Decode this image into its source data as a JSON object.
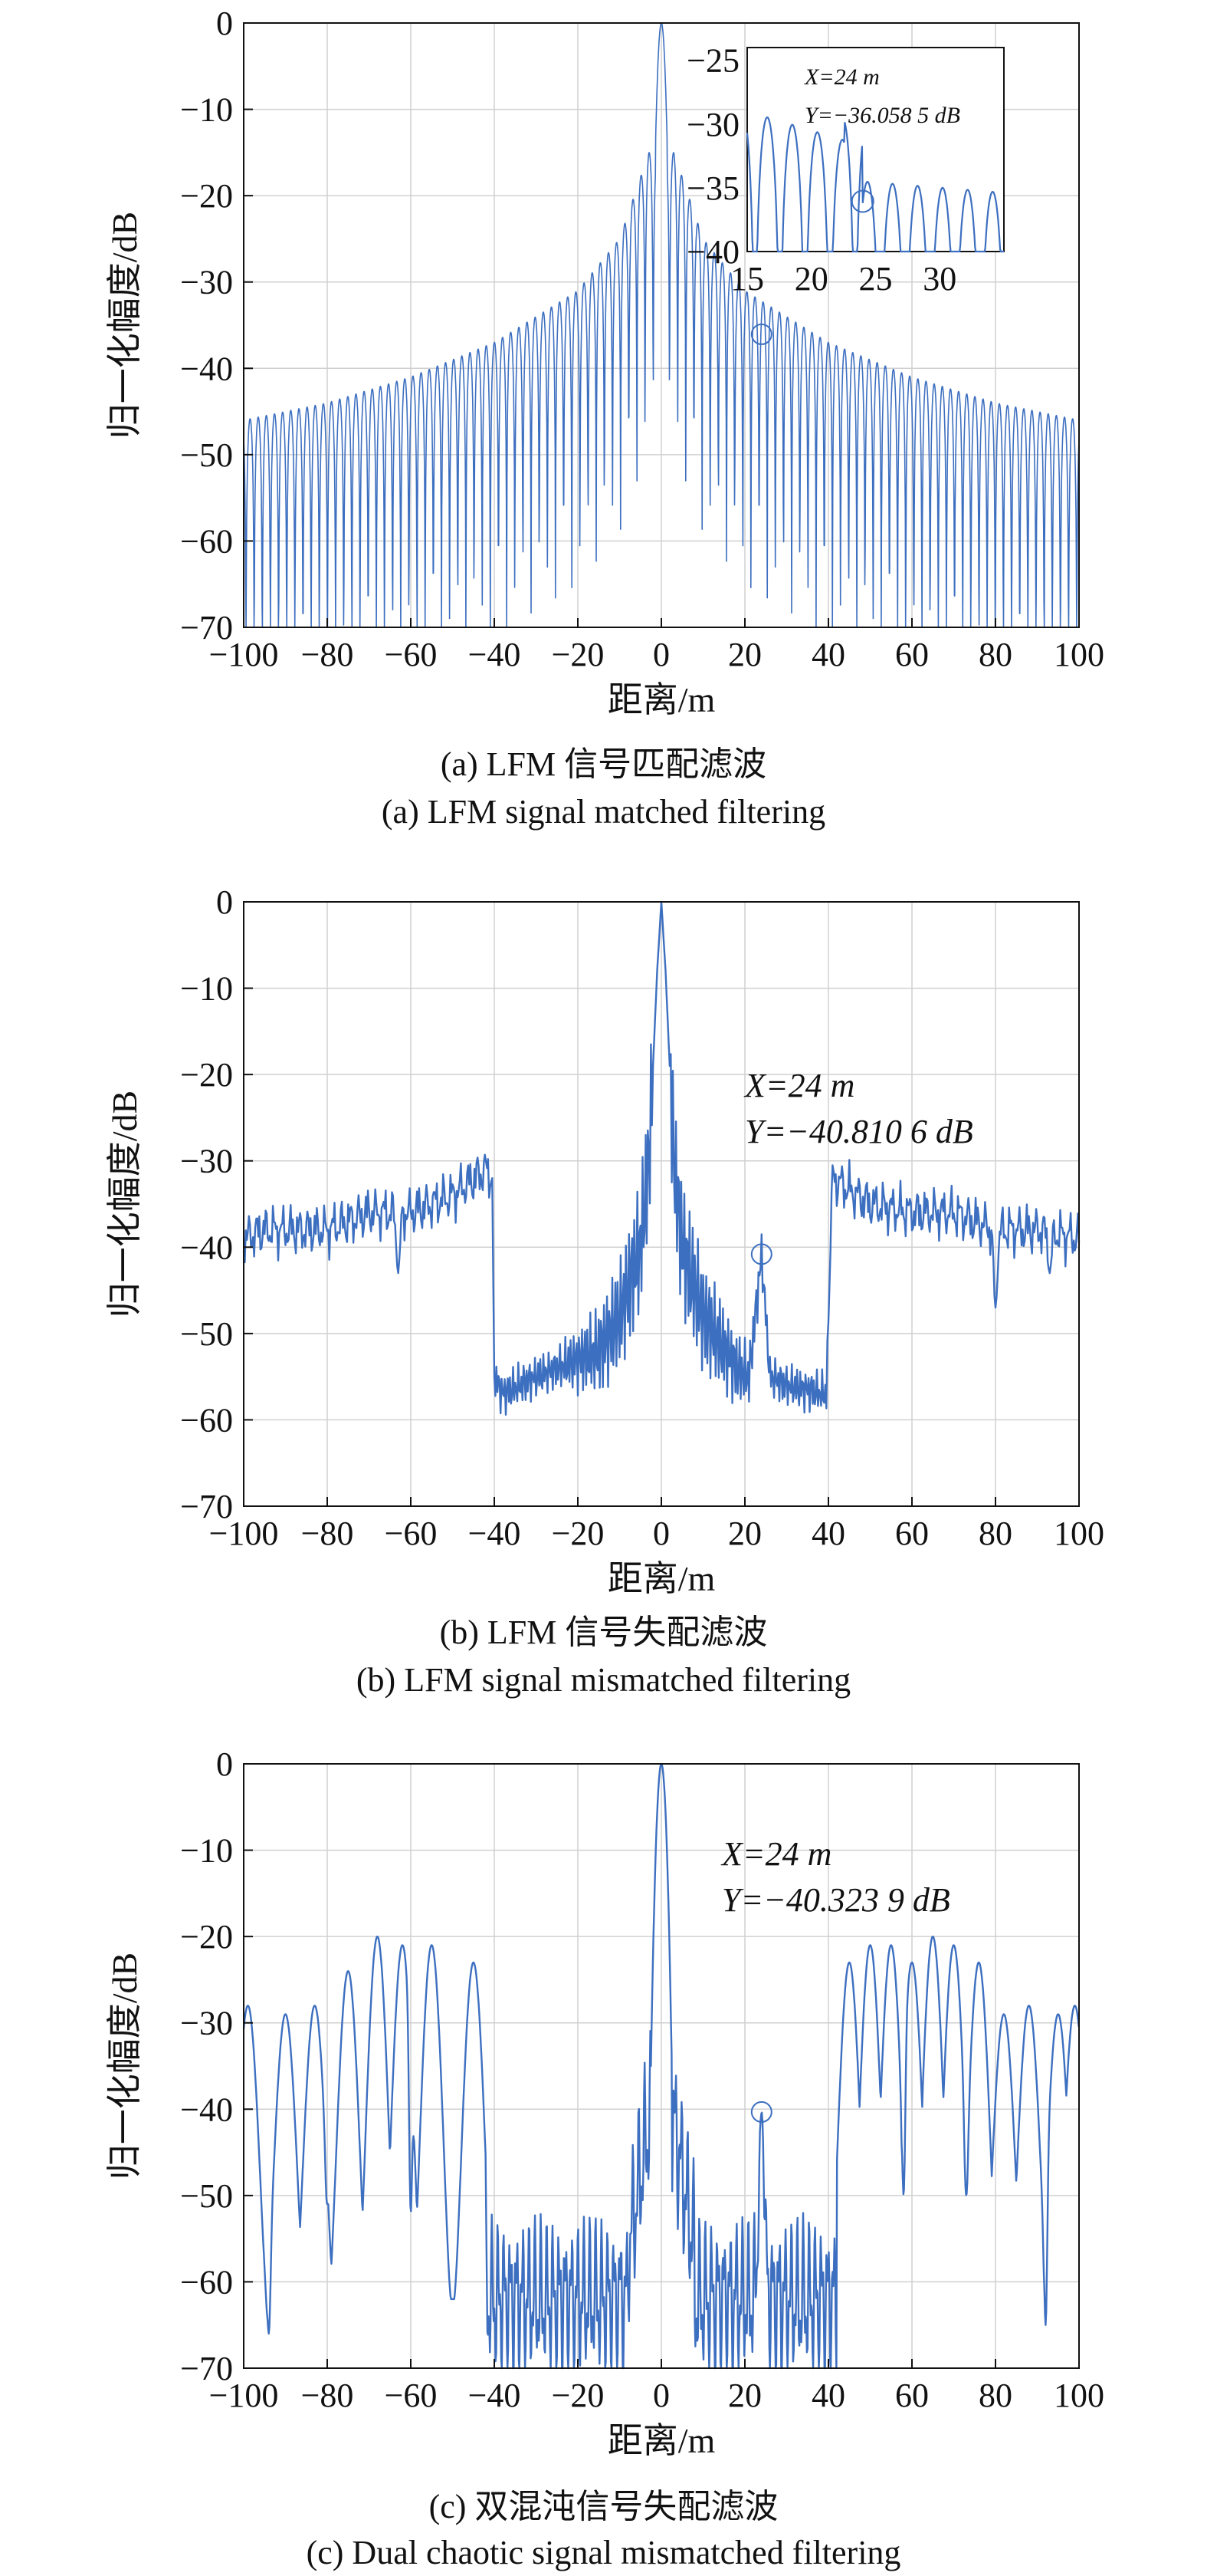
{
  "figure": {
    "panels": [
      {
        "caption_cn": "(a) LFM 信号匹配滤波",
        "caption_en": "(a) LFM signal matched filtering",
        "annotation": {
          "x_text": "X=24 m",
          "y_text": "Y=−36.058 5 dB"
        }
      },
      {
        "caption_cn": "(b) LFM 信号失配滤波",
        "caption_en": "(b) LFM signal mismatched filtering",
        "annotation": {
          "x_text": "X=24 m",
          "y_text": "Y=−40.810 6 dB"
        }
      },
      {
        "caption_cn": "(c) 双混沌信号失配滤波",
        "caption_en": "(c) Dual chaotic signal mismatched filtering",
        "annotation": {
          "x_text": "X=24 m",
          "y_text": "Y=−40.323 9 dB"
        }
      }
    ]
  },
  "chart_data": [
    {
      "type": "line",
      "xlabel": "距离/m",
      "ylabel": "归一化幅度/dB",
      "xlim": [
        -100,
        100
      ],
      "ylim": [
        -70,
        0
      ],
      "xticks": [
        "−100",
        "−80",
        "−60",
        "−40",
        "−20",
        "0",
        "20",
        "40",
        "60",
        "80",
        "100"
      ],
      "yticks": [
        "0",
        "−10",
        "−20",
        "−30",
        "−40",
        "−50",
        "−60",
        "−70"
      ],
      "grid": true,
      "line_color": "#3d6fc0",
      "peak": {
        "x": 0,
        "y": 0
      },
      "marker": {
        "x": 24,
        "y": -36.0585
      },
      "sidelobe_envelope": [
        {
          "x": -100,
          "y": -46
        },
        {
          "x": -80,
          "y": -44
        },
        {
          "x": -60,
          "y": -41
        },
        {
          "x": -40,
          "y": -37
        },
        {
          "x": -20,
          "y": -31
        },
        {
          "x": -10,
          "y": -25
        },
        {
          "x": -3,
          "y": -15
        },
        {
          "x": 3,
          "y": -15
        },
        {
          "x": 10,
          "y": -25
        },
        {
          "x": 20,
          "y": -31
        },
        {
          "x": 40,
          "y": -37
        },
        {
          "x": 60,
          "y": -41
        },
        {
          "x": 80,
          "y": -44
        },
        {
          "x": 100,
          "y": -46
        }
      ],
      "inset": {
        "xlim": [
          15,
          35
        ],
        "ylim": [
          -40,
          -24
        ],
        "xticks": [
          "15",
          "20",
          "25",
          "30"
        ],
        "yticks": [
          "−25",
          "−30",
          "−35",
          "−40"
        ],
        "marker": {
          "x": 24,
          "y": -36.0585
        }
      }
    },
    {
      "type": "line",
      "xlabel": "距离/m",
      "ylabel": "归一化幅度/dB",
      "xlim": [
        -100,
        100
      ],
      "ylim": [
        -70,
        0
      ],
      "xticks": [
        "−100",
        "−80",
        "−60",
        "−40",
        "−20",
        "0",
        "20",
        "40",
        "60",
        "80",
        "100"
      ],
      "yticks": [
        "0",
        "−10",
        "−20",
        "−30",
        "−40",
        "−50",
        "−60",
        "−70"
      ],
      "grid": true,
      "line_color": "#3d6fc0",
      "peak": {
        "x": 0,
        "y": 0
      },
      "marker": {
        "x": 24,
        "y": -40.8106
      },
      "profile": [
        {
          "x": -100,
          "y": -39
        },
        {
          "x": -95,
          "y": -38
        },
        {
          "x": -88,
          "y": -38
        },
        {
          "x": -80,
          "y": -38
        },
        {
          "x": -70,
          "y": -36
        },
        {
          "x": -60,
          "y": -36
        },
        {
          "x": -50,
          "y": -34
        },
        {
          "x": -42,
          "y": -31
        },
        {
          "x": -40.5,
          "y": -32
        },
        {
          "x": -40,
          "y": -55
        },
        {
          "x": -38,
          "y": -57
        },
        {
          "x": -30,
          "y": -55
        },
        {
          "x": -20,
          "y": -53
        },
        {
          "x": -15,
          "y": -52
        },
        {
          "x": -10,
          "y": -48
        },
        {
          "x": -5,
          "y": -40
        },
        {
          "x": -3,
          "y": -30
        },
        {
          "x": -1,
          "y": -8
        },
        {
          "x": 0,
          "y": 0
        },
        {
          "x": 1,
          "y": -8
        },
        {
          "x": 3,
          "y": -30
        },
        {
          "x": 5,
          "y": -40
        },
        {
          "x": 10,
          "y": -48
        },
        {
          "x": 18,
          "y": -54
        },
        {
          "x": 21,
          "y": -55
        },
        {
          "x": 24,
          "y": -40.8106
        },
        {
          "x": 26,
          "y": -55
        },
        {
          "x": 30,
          "y": -56
        },
        {
          "x": 39.5,
          "y": -57
        },
        {
          "x": 41,
          "y": -32
        },
        {
          "x": 50,
          "y": -35
        },
        {
          "x": 60,
          "y": -36
        },
        {
          "x": 70,
          "y": -36
        },
        {
          "x": 80,
          "y": -38
        },
        {
          "x": 90,
          "y": -38
        },
        {
          "x": 100,
          "y": -39
        }
      ],
      "dips": [
        {
          "x": -63,
          "y": -43
        },
        {
          "x": 80,
          "y": -47
        },
        {
          "x": 93,
          "y": -43
        }
      ]
    },
    {
      "type": "line",
      "xlabel": "距离/m",
      "ylabel": "归一化幅度/dB",
      "xlim": [
        -100,
        100
      ],
      "ylim": [
        -70,
        0
      ],
      "xticks": [
        "−100",
        "−80",
        "−60",
        "−40",
        "−20",
        "0",
        "20",
        "40",
        "60",
        "80",
        "100"
      ],
      "yticks": [
        "0",
        "−10",
        "−20",
        "−30",
        "−40",
        "−50",
        "−60",
        "−70"
      ],
      "grid": true,
      "line_color": "#3d6fc0",
      "peak": {
        "x": 0,
        "y": 0
      },
      "marker": {
        "x": 24,
        "y": -40.3239
      },
      "lobe_peaks": [
        {
          "x": -99,
          "y": -28
        },
        {
          "x": -90,
          "y": -29
        },
        {
          "x": -83,
          "y": -28
        },
        {
          "x": -75,
          "y": -24
        },
        {
          "x": -68,
          "y": -20
        },
        {
          "x": -62,
          "y": -21
        },
        {
          "x": -55,
          "y": -21
        },
        {
          "x": -45,
          "y": -23
        },
        {
          "x": 45,
          "y": -23
        },
        {
          "x": 50,
          "y": -21
        },
        {
          "x": 55,
          "y": -21
        },
        {
          "x": 60,
          "y": -23
        },
        {
          "x": 65,
          "y": -20
        },
        {
          "x": 70,
          "y": -21
        },
        {
          "x": 76,
          "y": -23
        },
        {
          "x": 82,
          "y": -29
        },
        {
          "x": 88,
          "y": -28
        },
        {
          "x": 95,
          "y": -29
        },
        {
          "x": 99,
          "y": -28
        }
      ],
      "dips": [
        {
          "x": -94,
          "y": -66
        },
        {
          "x": -80,
          "y": -51
        },
        {
          "x": -60,
          "y": -52
        },
        {
          "x": 58,
          "y": -50
        },
        {
          "x": 73,
          "y": -50
        },
        {
          "x": 92,
          "y": -65
        }
      ]
    }
  ]
}
